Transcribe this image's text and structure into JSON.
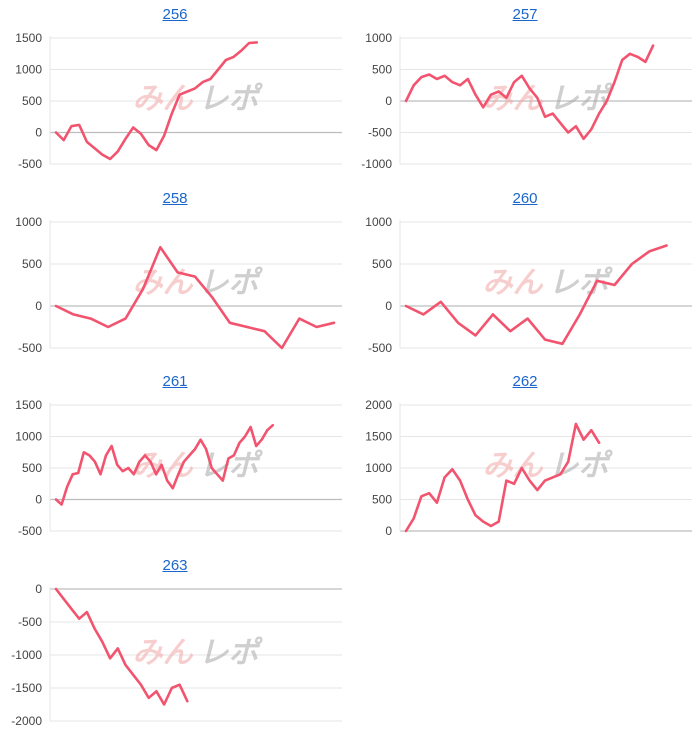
{
  "colors": {
    "line": "#f2546f",
    "grid": "#e6e6e6",
    "zero": "#bdbdbd",
    "link": "#1a66cc",
    "tick": "#444444"
  },
  "chart_data": [
    {
      "type": "line",
      "title": "256",
      "yticks": [
        1500,
        1000,
        500,
        0,
        -500
      ],
      "ylim": [
        -500,
        1500
      ],
      "series": [
        {
          "x": [
            0,
            5,
            10,
            15,
            20,
            25,
            30,
            35,
            40,
            45,
            50,
            55,
            60,
            65,
            70,
            75,
            80,
            85,
            90,
            95,
            100,
            105,
            110,
            115,
            120,
            125,
            130,
            135,
            140,
            145,
            150,
            155,
            160,
            165,
            170,
            175,
            180
          ],
          "values": [
            0,
            -120,
            100,
            120,
            -150,
            -250,
            -350,
            -420,
            -300,
            -100,
            80,
            -20,
            -200,
            -280,
            -50,
            300,
            600,
            650,
            700,
            800,
            850,
            1000,
            1150,
            1200,
            1300,
            1420,
            1430,
            null,
            null,
            null,
            null,
            null,
            null,
            null,
            null,
            null,
            null
          ]
        }
      ]
    },
    {
      "type": "line",
      "title": "257",
      "yticks": [
        1000,
        500,
        0,
        -500,
        -1000
      ],
      "ylim": [
        -1000,
        1000
      ],
      "series": [
        {
          "x": [
            0,
            5,
            10,
            15,
            20,
            25,
            30,
            35,
            40,
            45,
            50,
            55,
            60,
            65,
            70,
            75,
            80,
            85,
            90,
            95,
            100,
            105,
            110,
            115,
            120,
            125,
            130,
            135,
            140,
            145,
            150,
            155,
            160,
            165,
            170,
            175,
            180
          ],
          "values": [
            0,
            250,
            380,
            420,
            350,
            400,
            300,
            250,
            350,
            100,
            -100,
            100,
            150,
            50,
            300,
            400,
            200,
            50,
            -250,
            -200,
            -350,
            -500,
            -400,
            -600,
            -450,
            -200,
            0,
            300,
            650,
            750,
            700,
            620,
            880,
            null,
            null,
            null,
            null
          ]
        }
      ]
    },
    {
      "type": "line",
      "title": "258",
      "yticks": [
        1000,
        500,
        0,
        -500
      ],
      "ylim": [
        -500,
        1000
      ],
      "series": [
        {
          "x": [
            0,
            5,
            10,
            15,
            20,
            25,
            30,
            35,
            40,
            45,
            50,
            55,
            60,
            65,
            70,
            75,
            80
          ],
          "values": [
            0,
            -100,
            -150,
            -250,
            -150,
            200,
            700,
            400,
            350,
            100,
            -200,
            -250,
            -300,
            -500,
            -150,
            -250,
            -200
          ]
        }
      ]
    },
    {
      "type": "line",
      "title": "260",
      "yticks": [
        1000,
        500,
        0,
        -500
      ],
      "ylim": [
        -500,
        1000
      ],
      "series": [
        {
          "x": [
            0,
            5,
            10,
            15,
            20,
            25,
            30,
            35,
            40,
            45,
            50,
            55,
            60,
            65,
            70,
            75,
            80
          ],
          "values": [
            0,
            -100,
            50,
            -200,
            -350,
            -100,
            -300,
            -150,
            -400,
            -450,
            -100,
            300,
            250,
            500,
            650,
            720,
            null
          ]
        }
      ]
    },
    {
      "type": "line",
      "title": "261",
      "yticks": [
        1500,
        1000,
        500,
        0,
        -500
      ],
      "ylim": [
        -500,
        1500
      ],
      "series": [
        {
          "x": [
            0,
            5,
            10,
            15,
            20,
            25,
            30,
            35,
            40,
            45,
            50,
            55,
            60,
            65,
            70,
            75,
            80,
            85,
            90,
            95,
            100,
            105,
            110,
            115,
            120,
            125,
            130,
            135,
            140,
            145,
            150,
            155,
            160,
            165,
            170,
            175,
            180,
            185,
            190,
            195,
            200,
            205,
            210,
            215,
            220,
            225,
            230,
            235,
            240,
            245,
            250
          ],
          "values": [
            0,
            -80,
            200,
            400,
            420,
            750,
            700,
            600,
            400,
            700,
            850,
            550,
            450,
            500,
            400,
            600,
            700,
            600,
            400,
            550,
            300,
            180,
            400,
            600,
            700,
            800,
            950,
            800,
            500,
            400,
            300,
            650,
            700,
            900,
            1000,
            1150,
            850,
            950,
            1100,
            1180,
            null,
            null,
            null,
            null,
            null,
            null,
            null,
            null,
            null,
            null,
            null
          ]
        }
      ]
    },
    {
      "type": "line",
      "title": "262",
      "yticks": [
        2000,
        1500,
        1000,
        500,
        0
      ],
      "ylim": [
        0,
        2000
      ],
      "series": [
        {
          "x": [
            0,
            5,
            10,
            15,
            20,
            25,
            30,
            35,
            40,
            45,
            50,
            55,
            60,
            65,
            70,
            75,
            80,
            85,
            90,
            95,
            100,
            105,
            110,
            115,
            120,
            125,
            130,
            135,
            140,
            145,
            150,
            155,
            160,
            165,
            170,
            175,
            180
          ],
          "values": [
            0,
            200,
            550,
            600,
            450,
            850,
            980,
            800,
            500,
            250,
            150,
            80,
            150,
            800,
            750,
            1000,
            800,
            650,
            800,
            850,
            900,
            1100,
            1700,
            1450,
            1600,
            1400,
            null,
            null,
            null,
            null,
            null,
            null,
            null,
            null,
            null,
            null,
            null
          ]
        }
      ]
    },
    {
      "type": "line",
      "title": "263",
      "yticks": [
        0,
        -500,
        -1000,
        -1500,
        -2000
      ],
      "ylim": [
        -2000,
        0
      ],
      "series": [
        {
          "x": [
            0,
            5,
            10,
            15,
            20,
            25,
            30,
            35,
            40,
            45,
            50,
            55,
            60,
            65,
            70,
            75,
            80,
            85,
            90,
            95,
            100,
            105,
            110,
            115,
            120,
            125,
            130,
            135,
            140,
            145,
            150,
            155,
            160,
            165,
            170,
            175,
            180
          ],
          "values": [
            0,
            -150,
            -300,
            -450,
            -350,
            -600,
            -800,
            -1050,
            -900,
            -1150,
            -1300,
            -1450,
            -1650,
            -1550,
            -1750,
            -1500,
            -1450,
            -1700,
            null,
            null,
            null,
            null,
            null,
            null,
            null,
            null,
            null,
            null,
            null,
            null,
            null,
            null,
            null,
            null,
            null,
            null,
            null
          ]
        }
      ]
    }
  ]
}
